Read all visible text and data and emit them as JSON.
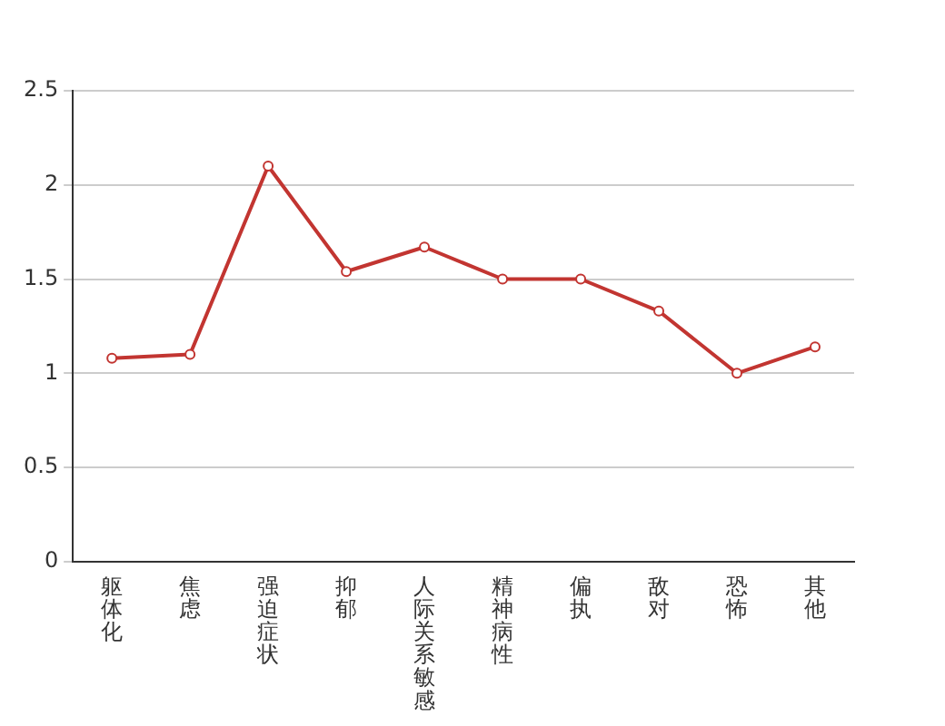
{
  "chart_data": {
    "type": "line",
    "categories": [
      "躯体化",
      "焦虑",
      "强迫症状",
      "抑郁",
      "人际关系敏感",
      "精神病性",
      "偏执",
      "敌对",
      "恐怖",
      "其他"
    ],
    "series": [
      {
        "color": "#c23531",
        "values": [
          1.08,
          1.1,
          2.1,
          1.54,
          1.67,
          1.5,
          1.5,
          1.33,
          1.0,
          1.14
        ]
      }
    ],
    "ylim": [
      0,
      2.5
    ],
    "yticks": [
      0,
      0.5,
      1,
      1.5,
      2,
      2.5
    ],
    "grid": "y",
    "marker": "circle",
    "line_style": "solid",
    "legend": false
  }
}
